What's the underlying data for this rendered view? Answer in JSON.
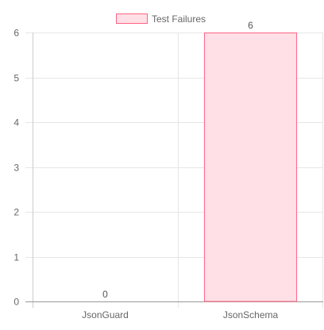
{
  "chart_data": {
    "type": "bar",
    "categories": [
      "JsonGuard",
      "JsonSchema"
    ],
    "series": [
      {
        "name": "Test Failures",
        "values": [
          0,
          6
        ],
        "fill": "#ffe0e6",
        "stroke": "#ff6384"
      }
    ],
    "data_labels": [
      "0",
      "6"
    ],
    "ylim": [
      0,
      6
    ],
    "yticks": [
      "0",
      "1",
      "2",
      "3",
      "4",
      "5",
      "6"
    ],
    "grid": true,
    "legend": "top-center",
    "colors": {
      "grid": "#e6e6e6",
      "axis": "#999999",
      "text": "#666666"
    }
  }
}
